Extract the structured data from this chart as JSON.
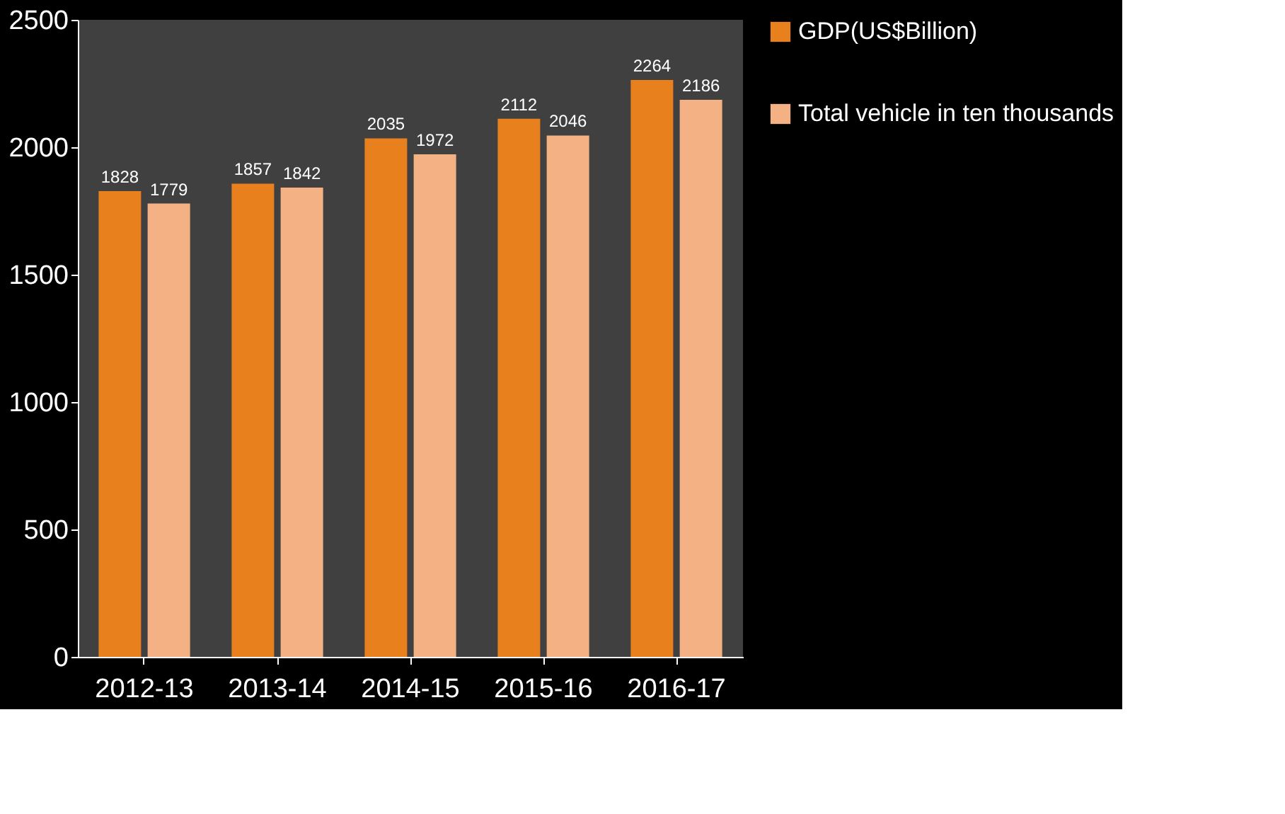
{
  "chart_data": {
    "type": "bar",
    "categories": [
      "2012-13",
      "2013-14",
      "2014-15",
      "2015-16",
      "2016-17"
    ],
    "series": [
      {
        "name": "GDP(US$Billion)",
        "color": "#e8801e",
        "values": [
          1828,
          1857,
          2035,
          2112,
          2264
        ]
      },
      {
        "name": "Total vehicle in ten thousands",
        "color": "#f4b183",
        "values": [
          1779,
          1842,
          1972,
          2046,
          2186
        ]
      }
    ],
    "ylim": [
      0,
      2500
    ],
    "yticks": [
      0,
      500,
      1000,
      1500,
      2000,
      2500
    ],
    "grid": false,
    "legend": "right",
    "data_labels": true
  }
}
